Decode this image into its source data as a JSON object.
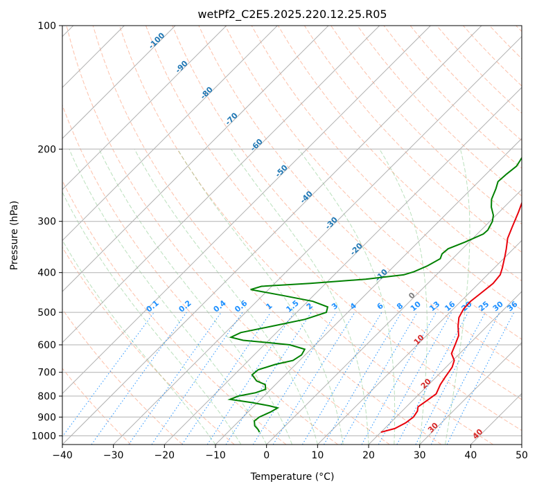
{
  "chart_data": {
    "type": "line",
    "title": "wetPf2_C2E5.2025.220.12.25.R05",
    "xlabel": "Temperature (°C)",
    "ylabel": "Pressure (hPa)",
    "xlim": [
      -40,
      50
    ],
    "ylim": [
      1050,
      100
    ],
    "y_scale": "log",
    "grid": true,
    "x_ticks": [
      -40,
      -30,
      -20,
      -10,
      0,
      10,
      20,
      30,
      40,
      50
    ],
    "y_ticks": [
      100,
      200,
      300,
      400,
      500,
      600,
      700,
      800,
      900,
      1000
    ],
    "series": [
      {
        "role": "temperature",
        "color": "#e8000b",
        "points": [
          [
            20.0,
            980
          ],
          [
            22.0,
            960
          ],
          [
            23.0,
            930
          ],
          [
            23.4,
            900
          ],
          [
            23.0,
            870
          ],
          [
            22.3,
            850
          ],
          [
            22.8,
            820
          ],
          [
            23.3,
            790
          ],
          [
            22.3,
            750
          ],
          [
            21.8,
            720
          ],
          [
            21.5,
            700
          ],
          [
            21.2,
            680
          ],
          [
            20.3,
            655
          ],
          [
            18.4,
            630
          ],
          [
            17.4,
            600
          ],
          [
            16.3,
            570
          ],
          [
            14.3,
            540
          ],
          [
            12.8,
            515
          ],
          [
            12.0,
            490
          ],
          [
            11.9,
            470
          ],
          [
            12.3,
            450
          ],
          [
            12.8,
            425
          ],
          [
            12.5,
            405
          ],
          [
            11.6,
            390
          ],
          [
            9.8,
            365
          ],
          [
            8.6,
            350
          ],
          [
            6.8,
            330
          ],
          [
            5.5,
            310
          ],
          [
            3.8,
            285
          ],
          [
            2.2,
            265
          ],
          [
            -0.2,
            240
          ],
          [
            -2.2,
            218
          ],
          [
            -3.8,
            204
          ],
          [
            -3.7,
            196
          ],
          [
            -2.9,
            190
          ],
          [
            -0.4,
            184
          ],
          [
            2.8,
            178
          ],
          [
            4.8,
            172
          ],
          [
            6.8,
            165
          ],
          [
            8.6,
            158
          ],
          [
            10.2,
            152
          ],
          [
            11.6,
            144
          ],
          [
            13.8,
            132
          ],
          [
            15.4,
            120
          ],
          [
            16.8,
            111
          ],
          [
            17.6,
            104
          ],
          [
            18.0,
            100
          ]
        ]
      },
      {
        "role": "dewpoint",
        "color": "#008000",
        "points": [
          [
            -3.8,
            980
          ],
          [
            -4.6,
            965
          ],
          [
            -6.0,
            945
          ],
          [
            -7.0,
            920
          ],
          [
            -6.8,
            900
          ],
          [
            -5.6,
            875
          ],
          [
            -5.0,
            855
          ],
          [
            -7.0,
            845
          ],
          [
            -11.0,
            830
          ],
          [
            -16.0,
            815
          ],
          [
            -15.0,
            800
          ],
          [
            -12.3,
            785
          ],
          [
            -11.0,
            770
          ],
          [
            -12.0,
            750
          ],
          [
            -14.4,
            735
          ],
          [
            -16.5,
            710
          ],
          [
            -16.3,
            690
          ],
          [
            -14.0,
            670
          ],
          [
            -11.3,
            655
          ],
          [
            -10.7,
            635
          ],
          [
            -11.2,
            615
          ],
          [
            -15.0,
            600
          ],
          [
            -20.0,
            592
          ],
          [
            -25.0,
            585
          ],
          [
            -28.0,
            575
          ],
          [
            -27.0,
            560
          ],
          [
            -22.0,
            540
          ],
          [
            -17.0,
            520
          ],
          [
            -14.2,
            500
          ],
          [
            -15.0,
            485
          ],
          [
            -19.0,
            470
          ],
          [
            -26.0,
            455
          ],
          [
            -33.5,
            440
          ],
          [
            -32.0,
            432
          ],
          [
            -23.0,
            425
          ],
          [
            -13.0,
            415
          ],
          [
            -6.4,
            405
          ],
          [
            -5.0,
            398
          ],
          [
            -3.5,
            385
          ],
          [
            -2.4,
            370
          ],
          [
            -3.0,
            360
          ],
          [
            -2.8,
            350
          ],
          [
            -0.8,
            337
          ],
          [
            1.2,
            322
          ],
          [
            1.3,
            315
          ],
          [
            0.5,
            300
          ],
          [
            -0.5,
            290
          ],
          [
            -2.5,
            277
          ],
          [
            -4.0,
            265
          ],
          [
            -5.2,
            250
          ],
          [
            -6.2,
            240
          ],
          [
            -6.0,
            230
          ],
          [
            -5.6,
            220
          ],
          [
            -6.2,
            210
          ],
          [
            -6.5,
            200
          ],
          [
            -7.4,
            190
          ],
          [
            -8.8,
            183
          ],
          [
            -12.0,
            175
          ],
          [
            -13.0,
            170
          ],
          [
            -12.3,
            164
          ],
          [
            -10.3,
            159
          ],
          [
            -7.5,
            154
          ],
          [
            -6.3,
            150
          ],
          [
            -6.0,
            140
          ],
          [
            -5.6,
            135
          ],
          [
            -4.8,
            128
          ],
          [
            -3.8,
            120
          ],
          [
            -2.5,
            112
          ],
          [
            -0.7,
            106
          ],
          [
            0.6,
            100
          ]
        ]
      }
    ],
    "isotherm_labels": [
      {
        "t": -100,
        "text": "-100"
      },
      {
        "t": -90,
        "text": "-90"
      },
      {
        "t": -80,
        "text": "-80"
      },
      {
        "t": -70,
        "text": "-70"
      },
      {
        "t": -60,
        "text": "-60"
      },
      {
        "t": -50,
        "text": "-50"
      },
      {
        "t": -40,
        "text": "-40"
      },
      {
        "t": -30,
        "text": "-30"
      },
      {
        "t": -20,
        "text": "-20"
      },
      {
        "t": -10,
        "text": "-10"
      },
      {
        "t": 0,
        "text": "0"
      },
      {
        "t": 10,
        "text": "10"
      },
      {
        "t": 20,
        "text": "20"
      },
      {
        "t": 30,
        "text": "30"
      },
      {
        "t": 40,
        "text": "40"
      }
    ],
    "mixing_ratio_labels": [
      "0.1",
      "0.2",
      "0.4",
      "0.6",
      "1",
      "1.5",
      "2",
      "3",
      "4",
      "6",
      "8",
      "10",
      "13",
      "16",
      "20",
      "25",
      "30",
      "36"
    ],
    "colors": {
      "isotherm_label_cold": "#1f77b4",
      "isotherm_zero": "#7f7f7f",
      "isotherm_label_warm": "#d62728",
      "mixing_ratio": "#1e90ff",
      "dry_adiabat": "#fc8d62",
      "moist_adiabat": "#66bb6a",
      "grid": "#b0b0b0"
    }
  }
}
